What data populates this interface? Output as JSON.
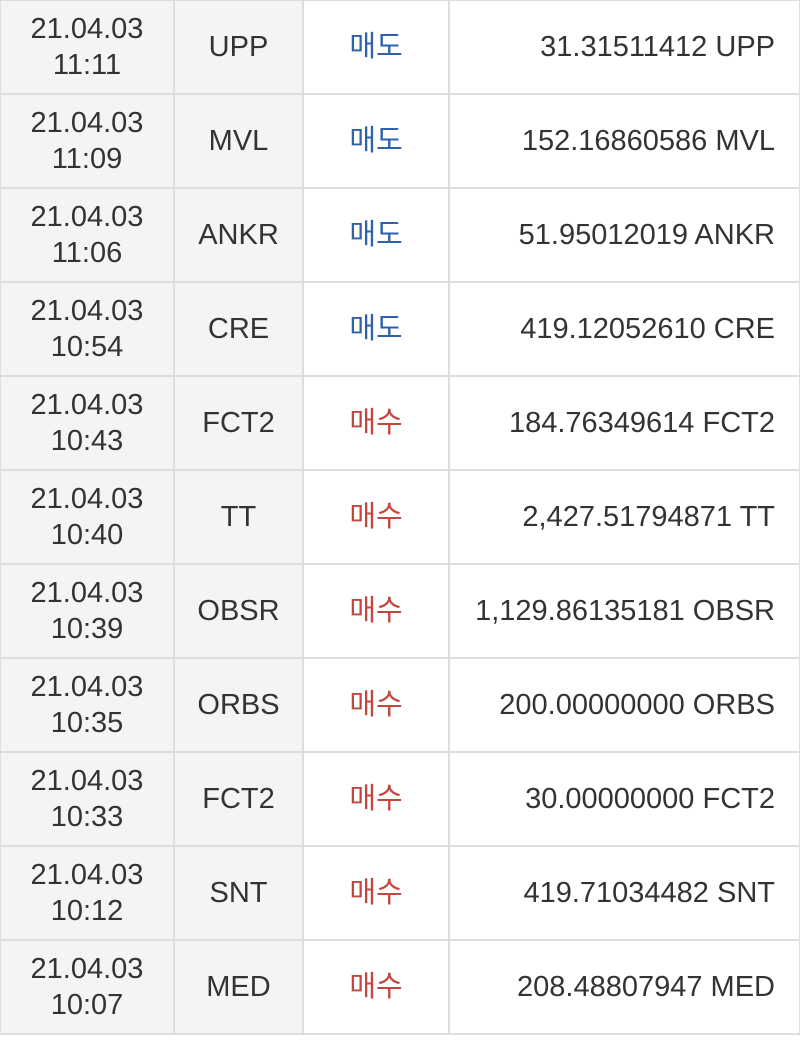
{
  "colors": {
    "sell": "#2f62ad",
    "buy": "#c2473f"
  },
  "rows": [
    {
      "date": "21.04.03",
      "time": "11:11",
      "coin": "UPP",
      "type": "매도",
      "side": "sell",
      "amount": "31.31511412 UPP"
    },
    {
      "date": "21.04.03",
      "time": "11:09",
      "coin": "MVL",
      "type": "매도",
      "side": "sell",
      "amount": "152.16860586 MVL"
    },
    {
      "date": "21.04.03",
      "time": "11:06",
      "coin": "ANKR",
      "type": "매도",
      "side": "sell",
      "amount": "51.95012019 ANKR"
    },
    {
      "date": "21.04.03",
      "time": "10:54",
      "coin": "CRE",
      "type": "매도",
      "side": "sell",
      "amount": "419.12052610 CRE"
    },
    {
      "date": "21.04.03",
      "time": "10:43",
      "coin": "FCT2",
      "type": "매수",
      "side": "buy",
      "amount": "184.76349614 FCT2"
    },
    {
      "date": "21.04.03",
      "time": "10:40",
      "coin": "TT",
      "type": "매수",
      "side": "buy",
      "amount": "2,427.51794871 TT"
    },
    {
      "date": "21.04.03",
      "time": "10:39",
      "coin": "OBSR",
      "type": "매수",
      "side": "buy",
      "amount": "1,129.86135181 OBSR"
    },
    {
      "date": "21.04.03",
      "time": "10:35",
      "coin": "ORBS",
      "type": "매수",
      "side": "buy",
      "amount": "200.00000000 ORBS"
    },
    {
      "date": "21.04.03",
      "time": "10:33",
      "coin": "FCT2",
      "type": "매수",
      "side": "buy",
      "amount": "30.00000000 FCT2"
    },
    {
      "date": "21.04.03",
      "time": "10:12",
      "coin": "SNT",
      "type": "매수",
      "side": "buy",
      "amount": "419.71034482 SNT"
    },
    {
      "date": "21.04.03",
      "time": "10:07",
      "coin": "MED",
      "type": "매수",
      "side": "buy",
      "amount": "208.48807947 MED"
    }
  ]
}
